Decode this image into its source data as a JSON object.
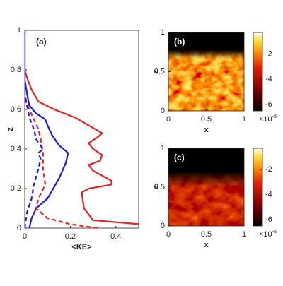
{
  "chart_data": [
    {
      "type": "line",
      "title": "(a)",
      "xlabel": "<KE>",
      "ylabel": "z",
      "xlim": [
        0,
        0.5
      ],
      "ylim": [
        0,
        1
      ],
      "xticks": [
        0,
        0.2,
        0.4
      ],
      "yticks": [
        0,
        0.2,
        0.4,
        0.6,
        0.8,
        1
      ],
      "series": [
        {
          "color": "#e32222",
          "dash": false,
          "values": [
            0.5,
            0.3,
            0.26,
            0.25,
            0.28,
            0.38,
            0.38,
            0.3,
            0.28,
            0.33,
            0.34,
            0.3,
            0.28,
            0.32,
            0.34,
            0.28,
            0.22,
            0.13,
            0.06,
            0.03,
            0.01,
            0,
            0
          ],
          "z": [
            0.02,
            0.04,
            0.1,
            0.18,
            0.2,
            0.22,
            0.24,
            0.29,
            0.32,
            0.34,
            0.37,
            0.4,
            0.43,
            0.46,
            0.48,
            0.52,
            0.56,
            0.6,
            0.64,
            0.7,
            0.76,
            0.8,
            1
          ]
        },
        {
          "color": "#1a1aee",
          "dash": false,
          "values": [
            0.02,
            0.03,
            0.05,
            0.1,
            0.15,
            0.18,
            0.19,
            0.15,
            0.12,
            0.1,
            0.09,
            0.05,
            0.02,
            0.01,
            0,
            0
          ],
          "z": [
            0,
            0.05,
            0.1,
            0.15,
            0.25,
            0.33,
            0.38,
            0.42,
            0.47,
            0.52,
            0.55,
            0.58,
            0.62,
            0.68,
            0.75,
            1
          ]
        },
        {
          "color": "#e32222",
          "dash": true,
          "values": [
            0.32,
            0.2,
            0.1,
            0.05,
            0.06,
            0.09,
            0.08,
            0.08,
            0.07,
            0.06,
            0.04,
            0.02,
            0
          ],
          "z": [
            0,
            0.02,
            0.05,
            0.1,
            0.15,
            0.22,
            0.3,
            0.38,
            0.45,
            0.5,
            0.55,
            0.6,
            0.65
          ]
        },
        {
          "color": "#1a1aee",
          "dash": true,
          "values": [
            0,
            0.01,
            0.03,
            0.04,
            0.06,
            0.07,
            0.06,
            0.08,
            0.05,
            0.04,
            0.02,
            0.01,
            0
          ],
          "z": [
            0,
            0.08,
            0.15,
            0.22,
            0.3,
            0.35,
            0.38,
            0.4,
            0.45,
            0.5,
            0.56,
            0.62,
            0.68
          ]
        }
      ]
    },
    {
      "type": "heatmap",
      "title": "(b)",
      "xlabel": "x",
      "ylabel": "z",
      "xlim": [
        0,
        1
      ],
      "ylim": [
        0,
        1
      ],
      "xticks": [
        0,
        0.5,
        1
      ],
      "yticks": [
        0,
        0.5,
        1
      ],
      "clim": [
        -6.5,
        -0.3
      ],
      "cticks": [
        -2,
        -4,
        -6
      ],
      "coffset": "×10",
      "cexponent": "-5",
      "style": "bright"
    },
    {
      "type": "heatmap",
      "title": "(c)",
      "xlabel": "x",
      "ylabel": "z",
      "xlim": [
        0,
        1
      ],
      "ylim": [
        0,
        1
      ],
      "xticks": [
        0,
        0.5,
        1
      ],
      "yticks": [
        0,
        0.5,
        1
      ],
      "clim": [
        -6.5,
        -0.3
      ],
      "cticks": [
        -2,
        -4,
        -6
      ],
      "coffset": "×10",
      "cexponent": "-5",
      "style": "dark"
    }
  ]
}
